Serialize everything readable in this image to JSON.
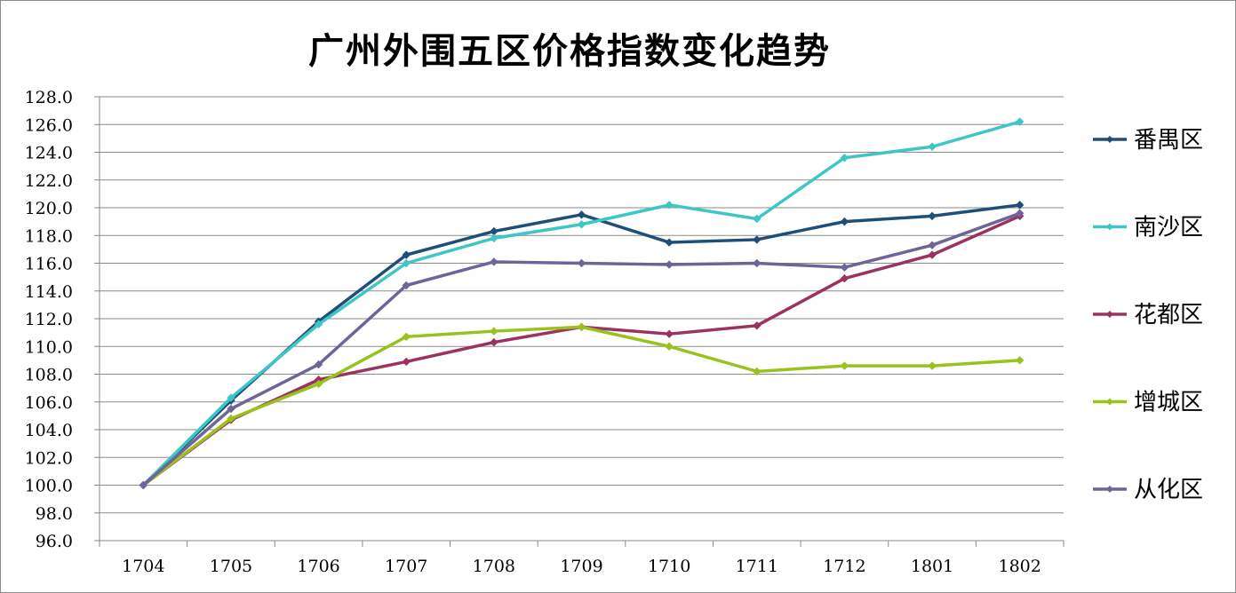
{
  "chart_data": {
    "type": "line",
    "title": "广州外围五区价格指数变化趋势",
    "xlabel": "",
    "ylabel": "",
    "categories": [
      "1704",
      "1705",
      "1706",
      "1707",
      "1708",
      "1709",
      "1710",
      "1711",
      "1712",
      "1801",
      "1802"
    ],
    "ylim": [
      96.0,
      128.0
    ],
    "ytick_step": 2.0,
    "y_tick_labels": [
      "96.0",
      "98.0",
      "100.0",
      "102.0",
      "104.0",
      "106.0",
      "108.0",
      "110.0",
      "112.0",
      "114.0",
      "116.0",
      "118.0",
      "120.0",
      "122.0",
      "124.0",
      "126.0",
      "128.0"
    ],
    "grid": true,
    "legend_position": "right",
    "series": [
      {
        "name": "番禺区",
        "color": "#1f4e79",
        "values": [
          100.0,
          106.1,
          111.8,
          116.6,
          118.3,
          119.5,
          117.5,
          117.7,
          119.0,
          119.4,
          120.2
        ]
      },
      {
        "name": "南沙区",
        "color": "#3ec6c6",
        "values": [
          100.0,
          106.3,
          111.6,
          116.0,
          117.8,
          118.8,
          120.2,
          119.2,
          123.6,
          124.4,
          126.2
        ]
      },
      {
        "name": "花都区",
        "color": "#9b3360",
        "values": [
          100.0,
          104.7,
          107.6,
          108.9,
          110.3,
          111.4,
          110.9,
          111.5,
          114.9,
          116.6,
          119.4
        ]
      },
      {
        "name": "增城区",
        "color": "#99c21c",
        "values": [
          100.0,
          104.8,
          107.3,
          110.7,
          111.1,
          111.4,
          110.0,
          108.2,
          108.6,
          108.6,
          109.0
        ]
      },
      {
        "name": "从化区",
        "color": "#6d6499",
        "values": [
          100.0,
          105.5,
          108.7,
          114.4,
          116.1,
          116.0,
          115.9,
          116.0,
          115.7,
          117.3,
          119.6
        ]
      }
    ]
  }
}
